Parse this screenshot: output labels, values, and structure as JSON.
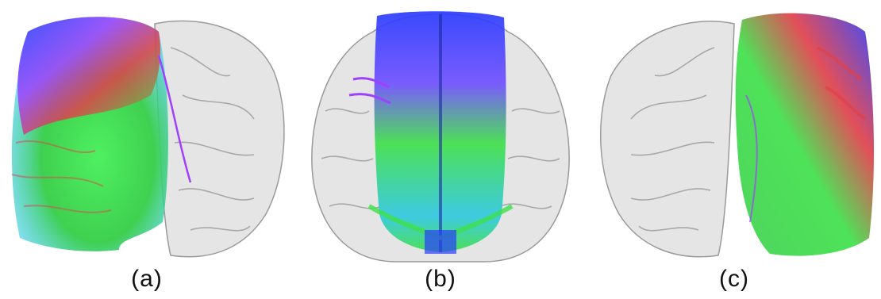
{
  "figure": {
    "panels": [
      {
        "label": "(a)",
        "view": "right-hemisphere-tractography"
      },
      {
        "label": "(b)",
        "view": "bilateral-tractography"
      },
      {
        "label": "(c)",
        "view": "left-hemisphere-tractography"
      }
    ],
    "colors": {
      "brain_shell": "#d9d9d9",
      "brain_outline": "#9a9a9a",
      "fiber_green": "#3fe04a",
      "fiber_blue": "#2a3cff",
      "fiber_red": "#e0404a",
      "fiber_purple": "#a040ff",
      "fiber_cyan": "#30c8e0"
    }
  }
}
